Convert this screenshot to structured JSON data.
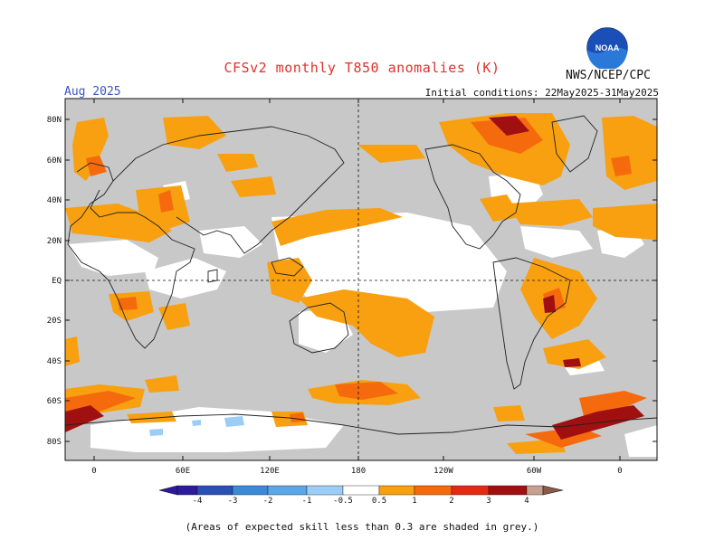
{
  "header": {
    "title": "CFSv2 monthly T850 anomalies (K)",
    "agency": "NWS/NCEP/CPC",
    "logo_text": "NOAA",
    "valid_month": "Aug 2025",
    "initial_conditions": "Initial conditions: 22May2025-31May2025"
  },
  "map": {
    "lat_labels": [
      "80N",
      "60N",
      "40N",
      "20N",
      "EQ",
      "20S",
      "40S",
      "60S",
      "80S"
    ],
    "lon_labels": [
      "0",
      "60E",
      "120E",
      "180",
      "120W",
      "60W",
      "0"
    ],
    "no_skill_color": "#c8c8c8",
    "background_color": "#ffffff"
  },
  "colorbar": {
    "colors": [
      "#2d1b9c",
      "#2b50b4",
      "#3a8ad8",
      "#5aa6e6",
      "#9ccdf6",
      "#ffffff",
      "#f8a010",
      "#f66a0e",
      "#e52a12",
      "#a01010",
      "#c8a090",
      "#8c5a4a"
    ],
    "labels": [
      "-4",
      "-3",
      "-2",
      "-1",
      "-0.5",
      "0.5",
      "1",
      "2",
      "3",
      "4"
    ]
  },
  "footnote": "(Areas of expected skill less than 0.3 are shaded in grey.)"
}
